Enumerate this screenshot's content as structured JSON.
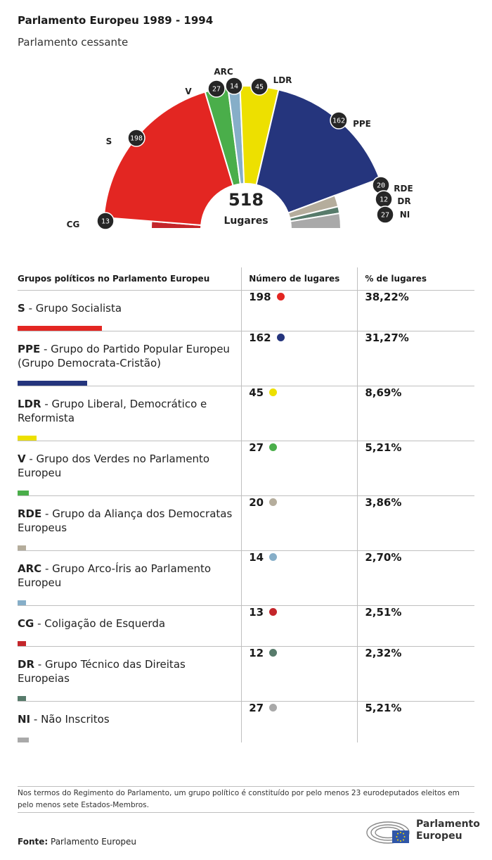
{
  "title": "Parlamento Europeu 1989 - 1994",
  "subtitle": "Parlamento cessante",
  "center": {
    "total": "518",
    "label": "Lugares"
  },
  "chart_data": {
    "type": "hemicycle",
    "total": 518,
    "series": [
      {
        "abbr": "CG",
        "seats": 13,
        "color": "#c4262b"
      },
      {
        "abbr": "S",
        "seats": 198,
        "color": "#e32622"
      },
      {
        "abbr": "V",
        "seats": 27,
        "color": "#4aae4a"
      },
      {
        "abbr": "ARC",
        "seats": 14,
        "color": "#86aec8"
      },
      {
        "abbr": "LDR",
        "seats": 45,
        "color": "#ede000"
      },
      {
        "abbr": "PPE",
        "seats": 162,
        "color": "#25357d"
      },
      {
        "abbr": "RDE",
        "seats": 20,
        "color": "#b5ad9c"
      },
      {
        "abbr": "DR",
        "seats": 12,
        "color": "#577b6b"
      },
      {
        "abbr": "NI",
        "seats": 27,
        "color": "#a9a9a9"
      }
    ]
  },
  "table": {
    "headers": [
      "Grupos políticos no Parlamento Europeu",
      "Número de lugares",
      "% de lugares"
    ],
    "rows": [
      {
        "abbr": "S",
        "name": " - Grupo Socialista",
        "seats": "198",
        "pct": "38,22%",
        "share": 0.3822,
        "color": "#e32622"
      },
      {
        "abbr": "PPE",
        "name": " - Grupo do Partido Popular Europeu (Grupo Democrata-Cristão)",
        "seats": "162",
        "pct": "31,27%",
        "share": 0.3127,
        "color": "#25357d"
      },
      {
        "abbr": "LDR",
        "name": " - Grupo Liberal, Democrático e Reformista",
        "seats": "45",
        "pct": "8,69%",
        "share": 0.0869,
        "color": "#ede000"
      },
      {
        "abbr": "V",
        "name": " - Grupo dos Verdes no Parlamento Europeu",
        "seats": "27",
        "pct": "5,21%",
        "share": 0.0521,
        "color": "#4aae4a"
      },
      {
        "abbr": "RDE",
        "name": " - Grupo da Aliança dos Democratas Europeus",
        "seats": "20",
        "pct": "3,86%",
        "share": 0.0386,
        "color": "#b5ad9c"
      },
      {
        "abbr": "ARC",
        "name": " - Grupo Arco-Íris ao Parlamento Europeu",
        "seats": "14",
        "pct": "2,70%",
        "share": 0.027,
        "color": "#86aec8"
      },
      {
        "abbr": "CG",
        "name": " - Coligação de Esquerda",
        "seats": "13",
        "pct": "2,51%",
        "share": 0.0251,
        "color": "#c4262b"
      },
      {
        "abbr": "DR",
        "name": " - Grupo Técnico das Direitas Europeias",
        "seats": "12",
        "pct": "2,32%",
        "share": 0.0232,
        "color": "#577b6b"
      },
      {
        "abbr": "NI",
        "name": " - Não Inscritos",
        "seats": "27",
        "pct": "5,21%",
        "share": 0.0521,
        "color": "#a9a9a9"
      }
    ]
  },
  "note": "Nos termos do Regimento do Parlamento, um grupo político é constituído por pelo menos 23 eurodeputados eleitos em pelo menos sete Estados-Membros.",
  "source": {
    "label": "Fonte:",
    "value": "Parlamento Europeu"
  },
  "logo": {
    "line1": "Parlamento",
    "line2": "Europeu",
    "icon": "european-parliament-logo"
  }
}
